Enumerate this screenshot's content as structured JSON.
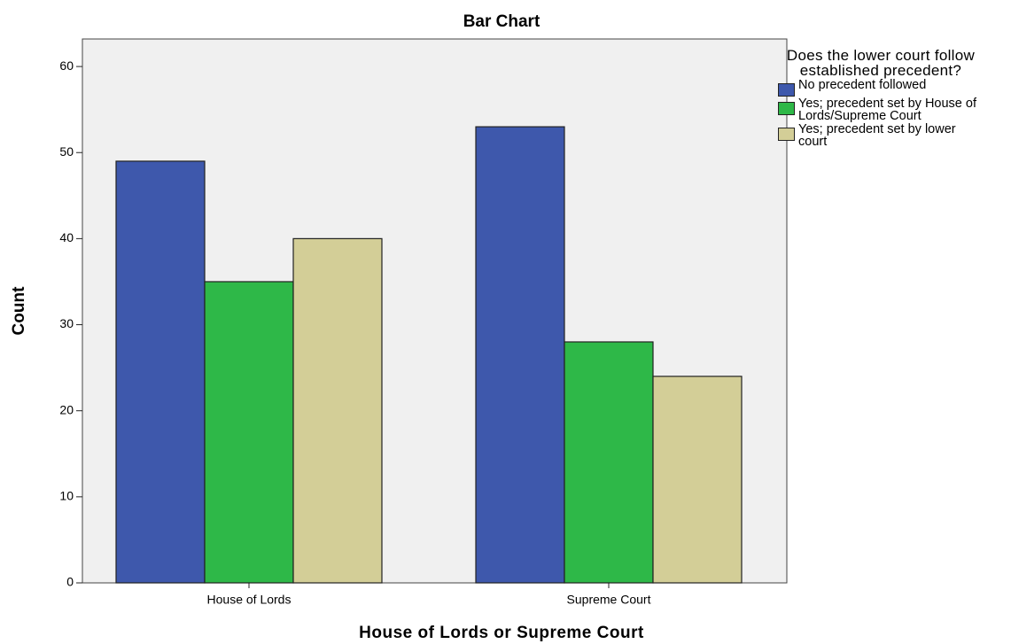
{
  "chart_data": {
    "type": "bar",
    "title": "Bar Chart",
    "x_label": "House of Lords or Supreme Court",
    "y_label": "Count",
    "legend_title": "Does the lower court follow established precedent?",
    "legend_position": "right",
    "categories": [
      "House of Lords",
      "Supreme Court"
    ],
    "series": [
      {
        "name": "No precedent followed",
        "color": "#3e58ac",
        "values": [
          49,
          53
        ]
      },
      {
        "name": "Yes; precedent set by House of Lords/Supreme Court",
        "color": "#2eb848",
        "values": [
          35,
          28
        ]
      },
      {
        "name": "Yes; precedent set by lower court",
        "color": "#d3ce97",
        "values": [
          40,
          24
        ]
      }
    ],
    "ylim": [
      0,
      63.2
    ],
    "yticks": [
      0,
      10,
      20,
      30,
      40,
      50,
      60
    ],
    "grid": false
  }
}
